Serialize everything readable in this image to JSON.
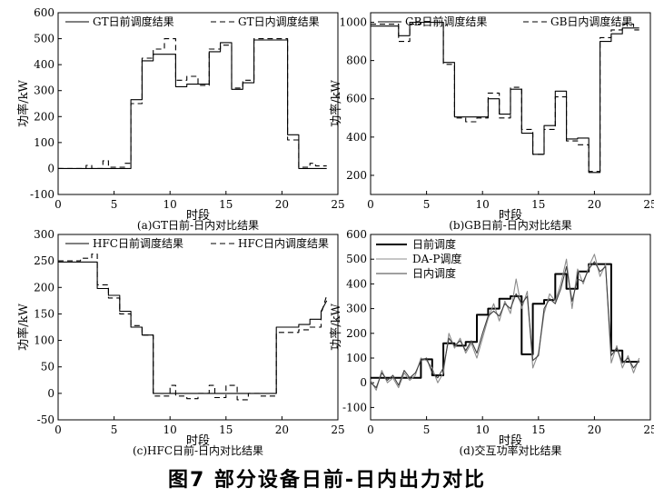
{
  "figure_caption": "图7 部分设备日前-日内出力对比",
  "chart_data": [
    {
      "type": "line",
      "panel": "tl",
      "subtitle": "(a)GT日前-日内对比结果",
      "xlabel": "时段",
      "ylabel": "功率/kW",
      "xlim": [
        0,
        25
      ],
      "ylim": [
        -100,
        600
      ],
      "xticks": [
        0,
        5,
        10,
        15,
        20,
        25
      ],
      "yticks": [
        -100,
        0,
        100,
        200,
        300,
        400,
        500,
        600
      ],
      "legend": "top",
      "series": [
        {
          "name": "GT日前调度结果",
          "style": "solid",
          "color": "#000000",
          "x": [
            0,
            6.5,
            6.5,
            7.5,
            7.5,
            8.5,
            8.5,
            10.5,
            10.5,
            11.5,
            11.5,
            13.5,
            13.5,
            14.5,
            14.5,
            15.5,
            15.5,
            16.5,
            16.5,
            17.5,
            17.5,
            20.5,
            20.5,
            21.5,
            21.5,
            24
          ],
          "y": [
            0,
            0,
            265,
            265,
            415,
            415,
            440,
            440,
            315,
            315,
            325,
            325,
            450,
            450,
            485,
            485,
            305,
            305,
            330,
            330,
            495,
            495,
            130,
            130,
            0,
            0
          ]
        },
        {
          "name": "GT日内调度结果",
          "style": "dash",
          "color": "#000000",
          "x": [
            0,
            2.5,
            2.5,
            3.0,
            3.0,
            4.0,
            4.0,
            4.5,
            4.5,
            6.0,
            6.0,
            6.5,
            6.5,
            7.5,
            7.5,
            8.5,
            8.5,
            9.5,
            9.5,
            10.5,
            10.5,
            11.5,
            11.5,
            12.5,
            12.5,
            13.5,
            13.5,
            14.5,
            14.5,
            15.5,
            15.5,
            16.5,
            16.5,
            17.5,
            17.5,
            20.5,
            20.5,
            21.5,
            21.5,
            22.5,
            22.5,
            23.0,
            23.0,
            24
          ],
          "y": [
            0,
            0,
            12,
            12,
            0,
            0,
            30,
            30,
            5,
            5,
            20,
            20,
            250,
            250,
            425,
            425,
            460,
            460,
            500,
            500,
            340,
            340,
            355,
            355,
            320,
            320,
            460,
            460,
            475,
            475,
            310,
            310,
            340,
            340,
            500,
            500,
            110,
            110,
            5,
            5,
            20,
            20,
            10,
            10
          ]
        }
      ]
    },
    {
      "type": "line",
      "panel": "tr",
      "subtitle": "(b)GB日前-日内对比结果",
      "xlabel": "时段",
      "ylabel": "功率/kW",
      "xlim": [
        0,
        25
      ],
      "ylim": [
        100,
        1050
      ],
      "xticks": [
        0,
        5,
        10,
        15,
        20,
        25
      ],
      "yticks": [
        200,
        400,
        600,
        800,
        1000
      ],
      "legend": "top",
      "series": [
        {
          "name": "GB日前调度结果",
          "style": "solid",
          "color": "#000000",
          "x": [
            0,
            2.5,
            2.5,
            3.5,
            3.5,
            6.5,
            6.5,
            7.5,
            7.5,
            10.5,
            10.5,
            11.5,
            11.5,
            12.5,
            12.5,
            13.5,
            13.5,
            14.5,
            14.5,
            15.5,
            15.5,
            16.5,
            16.5,
            17.5,
            17.5,
            18.5,
            18.5,
            19.5,
            19.5,
            20.5,
            20.5,
            21.5,
            21.5,
            22.5,
            22.5,
            24
          ],
          "y": [
            980,
            980,
            930,
            930,
            1000,
            1000,
            790,
            790,
            505,
            505,
            600,
            600,
            520,
            520,
            650,
            650,
            420,
            420,
            310,
            310,
            460,
            460,
            640,
            640,
            390,
            390,
            395,
            395,
            215,
            215,
            900,
            900,
            940,
            940,
            970,
            970
          ]
        },
        {
          "name": "GB日内调度结果",
          "style": "dash",
          "color": "#000000",
          "x": [
            0,
            2.5,
            2.5,
            3.5,
            3.5,
            4.5,
            4.5,
            6.5,
            6.5,
            7.5,
            7.5,
            8.5,
            8.5,
            9.5,
            9.5,
            10.5,
            10.5,
            11.5,
            11.5,
            12.5,
            12.5,
            13.5,
            13.5,
            14.5,
            14.5,
            15.5,
            15.5,
            16.5,
            16.5,
            17.5,
            17.5,
            18.5,
            18.5,
            19.5,
            19.5,
            20.5,
            20.5,
            21.5,
            21.5,
            22.5,
            22.5,
            23.5,
            23.5,
            24
          ],
          "y": [
            990,
            990,
            900,
            900,
            990,
            990,
            1000,
            1000,
            780,
            780,
            500,
            500,
            480,
            480,
            500,
            500,
            630,
            630,
            500,
            500,
            660,
            660,
            440,
            440,
            310,
            310,
            440,
            440,
            610,
            610,
            380,
            380,
            360,
            360,
            220,
            220,
            920,
            920,
            960,
            960,
            990,
            990,
            960,
            960
          ]
        }
      ]
    },
    {
      "type": "line",
      "panel": "bl",
      "subtitle": "(c)HFC日前-日内对比结果",
      "xlabel": "时段",
      "ylabel": "功率/kW",
      "xlim": [
        0,
        25
      ],
      "ylim": [
        -50,
        300
      ],
      "xticks": [
        0,
        5,
        10,
        15,
        20,
        25
      ],
      "yticks": [
        -50,
        0,
        50,
        100,
        150,
        200,
        250,
        300
      ],
      "legend": "top",
      "series": [
        {
          "name": "HFC日前调度结果",
          "style": "solid",
          "color": "#000000",
          "x": [
            0,
            3.5,
            3.5,
            4.5,
            4.5,
            5.5,
            5.5,
            6.5,
            6.5,
            7.5,
            7.5,
            8.5,
            8.5,
            19.5,
            19.5,
            21.5,
            21.5,
            22.5,
            22.5,
            23.5,
            23.5,
            24
          ],
          "y": [
            248,
            248,
            198,
            198,
            185,
            185,
            155,
            155,
            125,
            125,
            110,
            110,
            0,
            0,
            125,
            125,
            130,
            130,
            140,
            140,
            155,
            175
          ]
        },
        {
          "name": "HFC日内调度结果",
          "style": "dash",
          "color": "#000000",
          "x": [
            0,
            2.0,
            2.0,
            3.0,
            3.0,
            3.5,
            3.5,
            4.5,
            4.5,
            5.5,
            5.5,
            6.5,
            6.5,
            7.5,
            7.5,
            8.5,
            8.5,
            10.0,
            10.0,
            10.5,
            10.5,
            11.5,
            11.5,
            12.5,
            12.5,
            13.5,
            13.5,
            14.0,
            14.0,
            15.0,
            15.0,
            16.0,
            16.0,
            17.0,
            17.0,
            18.0,
            18.0,
            19.5,
            19.5,
            21.5,
            21.5,
            22.5,
            22.5,
            23.5,
            23.5,
            24
          ],
          "y": [
            250,
            250,
            255,
            255,
            263,
            263,
            205,
            205,
            180,
            180,
            150,
            150,
            128,
            128,
            110,
            110,
            -5,
            -5,
            15,
            15,
            -5,
            -5,
            -10,
            -10,
            0,
            0,
            15,
            15,
            -8,
            -8,
            15,
            15,
            -12,
            -12,
            0,
            0,
            -5,
            -5,
            115,
            115,
            120,
            120,
            125,
            125,
            150,
            185
          ]
        }
      ]
    },
    {
      "type": "line",
      "panel": "br",
      "subtitle": "(d)交互功率对比结果",
      "xlabel": "时段",
      "ylabel": "功率/kW",
      "xlim": [
        0,
        25
      ],
      "ylim": [
        -150,
        600
      ],
      "xticks": [
        0,
        5,
        10,
        15,
        20,
        25
      ],
      "yticks": [
        -100,
        0,
        100,
        200,
        300,
        400,
        500,
        600
      ],
      "legend": "top-left",
      "series": [
        {
          "name": "日前调度",
          "style": "solid-thick",
          "color": "#000000",
          "x": [
            0,
            4.5,
            4.5,
            5.5,
            5.5,
            6.5,
            6.5,
            7.5,
            7.5,
            8.5,
            8.5,
            9.5,
            9.5,
            10.5,
            10.5,
            11.5,
            11.5,
            12.5,
            12.5,
            13.5,
            13.5,
            14.5,
            14.5,
            15.5,
            15.5,
            16.5,
            16.5,
            17.5,
            17.5,
            18.5,
            18.5,
            19.5,
            19.5,
            21.5,
            21.5,
            22.5,
            22.5,
            24
          ],
          "y": [
            20,
            20,
            95,
            95,
            30,
            30,
            160,
            160,
            150,
            150,
            165,
            165,
            275,
            275,
            300,
            300,
            340,
            340,
            350,
            350,
            115,
            115,
            320,
            320,
            335,
            335,
            440,
            440,
            380,
            380,
            450,
            450,
            480,
            480,
            130,
            130,
            85,
            85
          ]
        },
        {
          "name": "DA-P调度",
          "style": "solid",
          "color": "#8c8c8c",
          "x": [
            0,
            0.5,
            1,
            1.5,
            2,
            2.5,
            3,
            3.5,
            4,
            4.5,
            5,
            5.5,
            6,
            6.5,
            7,
            7.5,
            8,
            8.5,
            9,
            9.5,
            10,
            10.5,
            11,
            11.5,
            12,
            12.5,
            13,
            13.5,
            14,
            14.5,
            15,
            15.5,
            16,
            16.5,
            17,
            17.5,
            18,
            18.5,
            19,
            19.5,
            20,
            20.5,
            21,
            21.5,
            22,
            22.5,
            23,
            23.5,
            24
          ],
          "y": [
            10,
            -30,
            50,
            0,
            20,
            -20,
            40,
            10,
            30,
            100,
            90,
            60,
            0,
            40,
            200,
            140,
            180,
            120,
            160,
            100,
            180,
            260,
            320,
            250,
            330,
            280,
            420,
            300,
            370,
            60,
            120,
            280,
            360,
            330,
            400,
            500,
            300,
            460,
            400,
            470,
            520,
            430,
            480,
            80,
            150,
            60,
            110,
            40,
            100
          ]
        },
        {
          "name": "日内调度",
          "style": "solid",
          "color": "#404040",
          "x": [
            0,
            0.5,
            1,
            1.5,
            2,
            2.5,
            3,
            3.5,
            4,
            4.5,
            5,
            5.5,
            6,
            6.5,
            7,
            7.5,
            8,
            8.5,
            9,
            9.5,
            10,
            10.5,
            11,
            11.5,
            12,
            12.5,
            13,
            13.5,
            14,
            14.5,
            15,
            15.5,
            16,
            16.5,
            17,
            17.5,
            18,
            18.5,
            19,
            19.5,
            20,
            20.5,
            21,
            21.5,
            22,
            22.5,
            23,
            23.5,
            24
          ],
          "y": [
            0,
            -20,
            40,
            10,
            30,
            -10,
            50,
            20,
            40,
            90,
            100,
            40,
            20,
            60,
            180,
            150,
            170,
            130,
            170,
            120,
            200,
            270,
            290,
            270,
            320,
            300,
            360,
            320,
            350,
            90,
            110,
            300,
            340,
            320,
            380,
            470,
            330,
            420,
            410,
            460,
            490,
            450,
            470,
            110,
            140,
            80,
            100,
            60,
            90
          ]
        }
      ]
    }
  ]
}
